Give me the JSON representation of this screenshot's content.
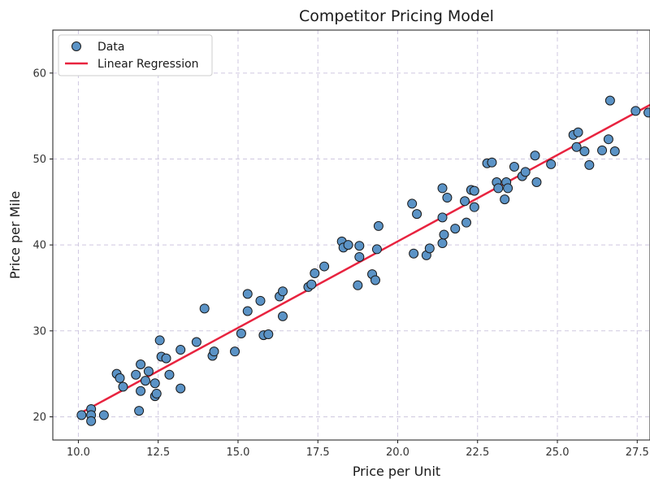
{
  "chart_data": {
    "type": "scatter",
    "title": "Competitor Pricing Model",
    "xlabel": "Price per Unit",
    "ylabel": "Price per Mile",
    "xlim": [
      9.2,
      27.9
    ],
    "ylim": [
      17.3,
      65.0
    ],
    "x_ticks": [
      10.0,
      12.5,
      15.0,
      17.5,
      20.0,
      22.5,
      25.0,
      27.5
    ],
    "x_tick_labels": [
      "10.0",
      "12.5",
      "15.0",
      "17.5",
      "20.0",
      "22.5",
      "25.0",
      "27.5"
    ],
    "y_ticks": [
      20,
      30,
      40,
      50,
      60
    ],
    "y_tick_labels": [
      "20",
      "30",
      "40",
      "50",
      "60"
    ],
    "grid": true,
    "legend_position": "top-left",
    "colors": {
      "points_fill": "#5b93c6",
      "points_edge": "#1a1a1a",
      "line": "#e8233f",
      "grid": "#cfc8e0"
    },
    "series": [
      {
        "name": "Data",
        "kind": "scatter",
        "points": [
          [
            10.1,
            20.2
          ],
          [
            10.4,
            20.9
          ],
          [
            10.4,
            20.2
          ],
          [
            10.4,
            19.5
          ],
          [
            10.8,
            20.2
          ],
          [
            11.2,
            25.0
          ],
          [
            11.3,
            24.5
          ],
          [
            11.4,
            23.5
          ],
          [
            11.8,
            24.9
          ],
          [
            11.9,
            20.7
          ],
          [
            11.95,
            23.0
          ],
          [
            11.95,
            26.1
          ],
          [
            12.1,
            24.2
          ],
          [
            12.2,
            25.3
          ],
          [
            12.4,
            23.9
          ],
          [
            12.4,
            22.4
          ],
          [
            12.45,
            22.7
          ],
          [
            12.55,
            28.9
          ],
          [
            12.6,
            27.0
          ],
          [
            12.75,
            26.8
          ],
          [
            12.85,
            24.9
          ],
          [
            13.2,
            27.8
          ],
          [
            13.2,
            23.3
          ],
          [
            13.7,
            28.7
          ],
          [
            13.95,
            32.6
          ],
          [
            14.2,
            27.1
          ],
          [
            14.25,
            27.6
          ],
          [
            14.9,
            27.6
          ],
          [
            15.1,
            29.7
          ],
          [
            15.3,
            34.3
          ],
          [
            15.3,
            32.3
          ],
          [
            15.7,
            33.5
          ],
          [
            15.8,
            29.5
          ],
          [
            15.95,
            29.6
          ],
          [
            16.3,
            34.0
          ],
          [
            16.4,
            34.6
          ],
          [
            16.4,
            31.7
          ],
          [
            17.2,
            35.1
          ],
          [
            17.3,
            35.4
          ],
          [
            17.4,
            36.7
          ],
          [
            17.7,
            37.5
          ],
          [
            18.25,
            40.4
          ],
          [
            18.3,
            39.7
          ],
          [
            18.45,
            40.0
          ],
          [
            18.75,
            35.3
          ],
          [
            18.8,
            39.9
          ],
          [
            18.8,
            38.6
          ],
          [
            19.2,
            36.6
          ],
          [
            19.3,
            35.9
          ],
          [
            19.35,
            39.5
          ],
          [
            19.4,
            42.2
          ],
          [
            20.45,
            44.8
          ],
          [
            20.5,
            39.0
          ],
          [
            20.6,
            43.6
          ],
          [
            20.9,
            38.8
          ],
          [
            21.0,
            39.6
          ],
          [
            21.4,
            46.6
          ],
          [
            21.4,
            43.2
          ],
          [
            21.4,
            40.2
          ],
          [
            21.45,
            41.2
          ],
          [
            21.55,
            45.5
          ],
          [
            21.8,
            41.9
          ],
          [
            22.1,
            45.1
          ],
          [
            22.15,
            42.6
          ],
          [
            22.3,
            46.4
          ],
          [
            22.4,
            46.3
          ],
          [
            22.4,
            44.4
          ],
          [
            22.8,
            49.5
          ],
          [
            22.95,
            49.6
          ],
          [
            23.1,
            47.3
          ],
          [
            23.15,
            46.6
          ],
          [
            23.35,
            45.3
          ],
          [
            23.4,
            47.3
          ],
          [
            23.45,
            46.6
          ],
          [
            23.65,
            49.1
          ],
          [
            23.9,
            48.0
          ],
          [
            24.0,
            48.5
          ],
          [
            24.3,
            50.4
          ],
          [
            24.35,
            47.3
          ],
          [
            24.8,
            49.4
          ],
          [
            25.5,
            52.8
          ],
          [
            25.6,
            51.4
          ],
          [
            25.65,
            53.1
          ],
          [
            25.85,
            50.9
          ],
          [
            26.0,
            49.3
          ],
          [
            26.4,
            51.0
          ],
          [
            26.6,
            52.3
          ],
          [
            26.65,
            56.8
          ],
          [
            26.8,
            50.9
          ],
          [
            27.45,
            55.6
          ],
          [
            27.85,
            55.4
          ]
        ]
      },
      {
        "name": "Linear Regression",
        "kind": "line",
        "points": [
          [
            10.1,
            20.5
          ],
          [
            27.9,
            56.3
          ]
        ]
      }
    ]
  }
}
